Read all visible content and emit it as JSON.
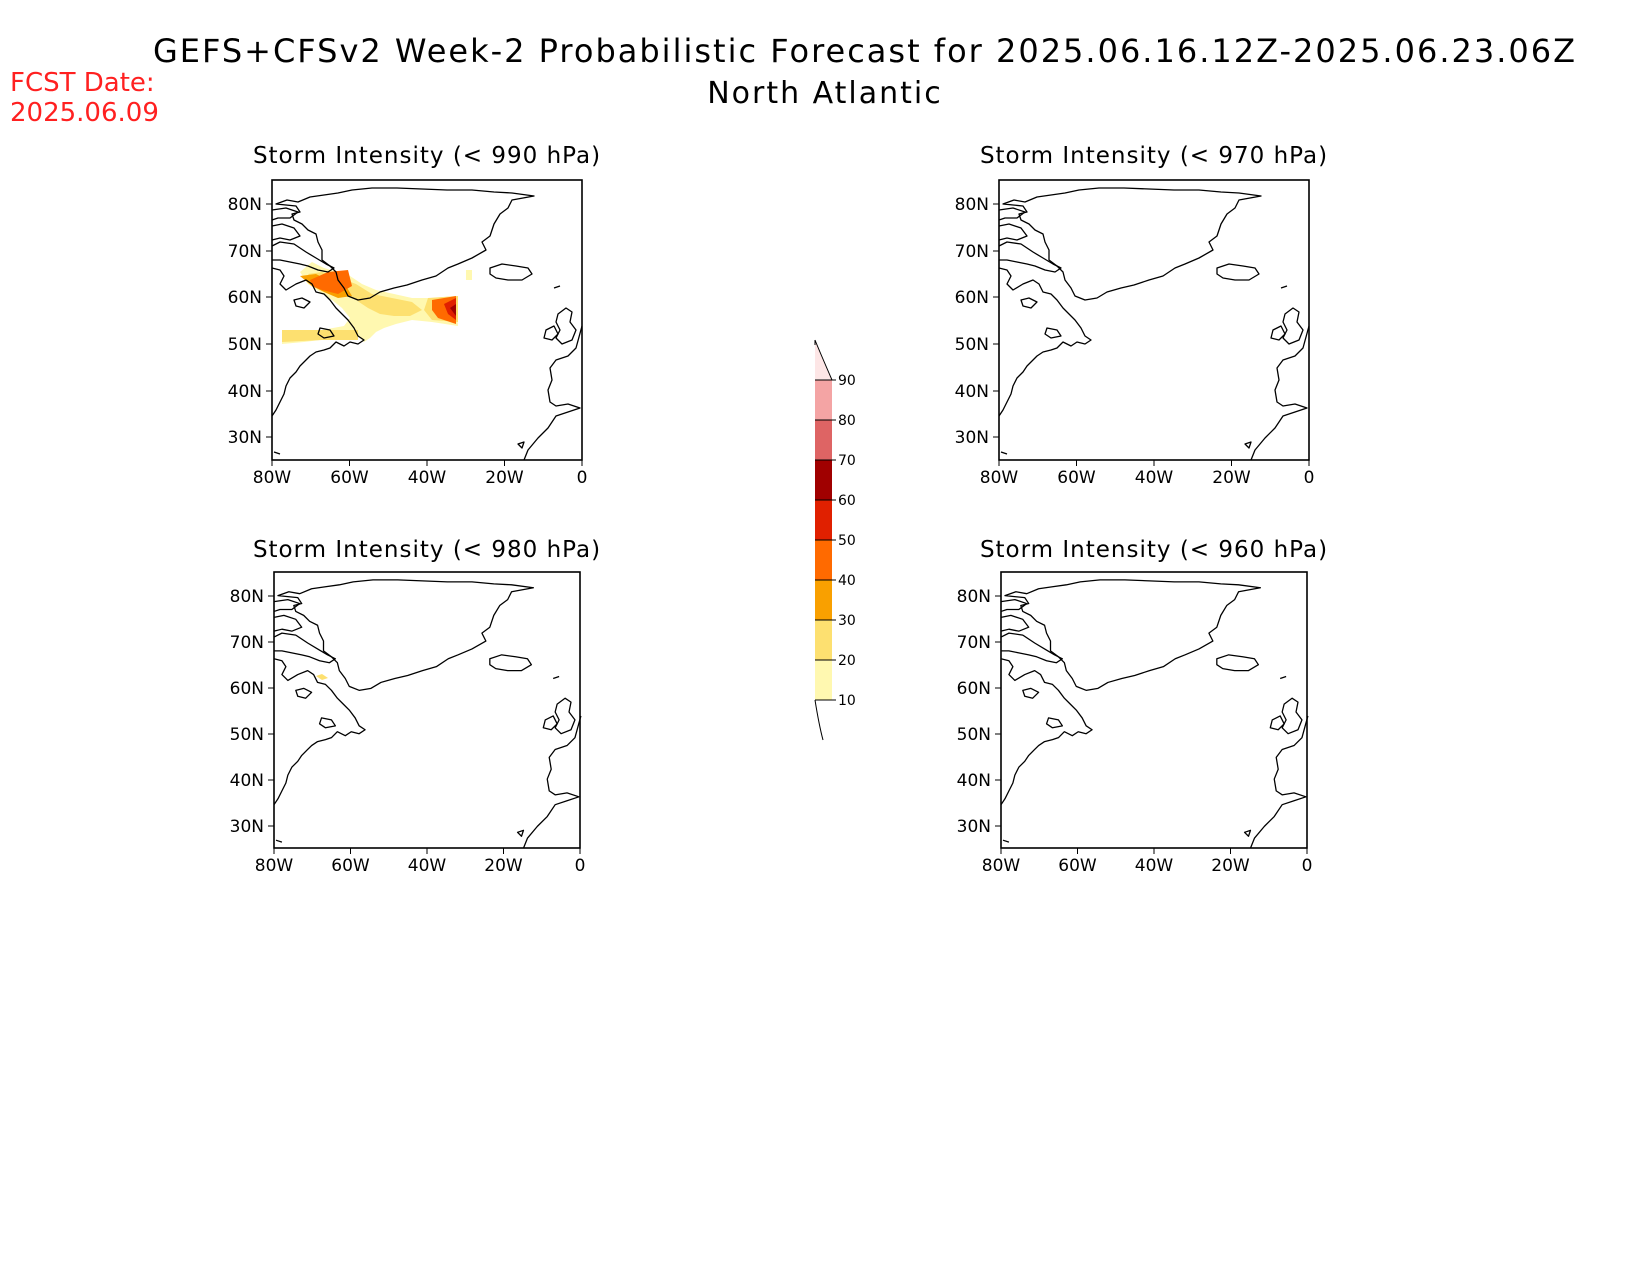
{
  "title": {
    "line1": "GEFS+CFSv2 Week-2 Probabilistic Forecast for 2025.06.16.12Z-2025.06.23.06Z",
    "line2": "North Atlantic"
  },
  "forecast_date": {
    "label": "FCST Date:",
    "value": "2025.06.09"
  },
  "axes": {
    "lon_ticks": [
      "80W",
      "60W",
      "40W",
      "20W",
      "0"
    ],
    "lat_ticks": [
      "80N",
      "70N",
      "60N",
      "50N",
      "40N",
      "30N"
    ],
    "lon_range": [
      -80,
      0
    ],
    "lat_range": [
      25,
      85
    ]
  },
  "colorbar": {
    "levels": [
      "10",
      "20",
      "30",
      "40",
      "50",
      "60",
      "70",
      "80",
      "90"
    ],
    "colors": [
      "#fff8b0",
      "#fde070",
      "#f9a000",
      "#ff6a00",
      "#e02000",
      "#a00000",
      "#de6464",
      "#f4a4a4",
      "#fde6e6"
    ]
  },
  "panels": [
    {
      "id": "p990",
      "title": "Storm Intensity (< 990 hPa)"
    },
    {
      "id": "p970",
      "title": "Storm Intensity (< 970 hPa)"
    },
    {
      "id": "p980",
      "title": "Storm Intensity (< 980 hPa)"
    },
    {
      "id": "p960",
      "title": "Storm Intensity (< 960 hPa)"
    }
  ]
}
